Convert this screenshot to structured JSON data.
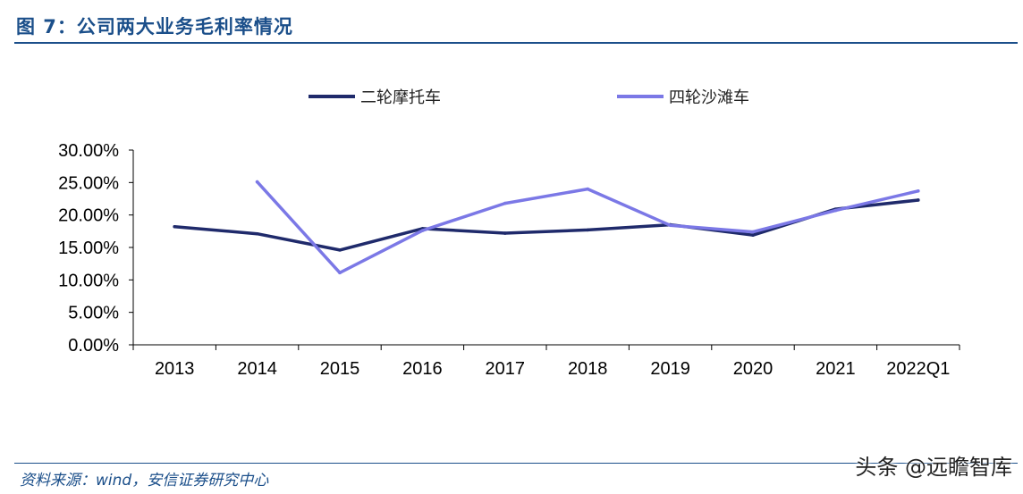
{
  "figure": {
    "title": "图 7：公司两大业务毛利率情况",
    "source": "资料来源：wind，安信证券研究中心",
    "watermark": "头条 @远瞻智库"
  },
  "chart_data": {
    "type": "line",
    "title": "",
    "xlabel": "",
    "ylabel": "",
    "categories": [
      "2013",
      "2014",
      "2015",
      "2016",
      "2017",
      "2018",
      "2019",
      "2020",
      "2021",
      "2022Q1"
    ],
    "ylim": [
      0,
      30
    ],
    "yticks": [
      "0.00%",
      "5.00%",
      "10.00%",
      "15.00%",
      "20.00%",
      "25.00%",
      "30.00%"
    ],
    "grid": false,
    "legend_position": "top",
    "series": [
      {
        "name": "二轮摩托车",
        "color": "#1f2a6b",
        "values": [
          18.2,
          17.1,
          14.6,
          17.9,
          17.2,
          17.7,
          18.5,
          16.9,
          20.9,
          22.3
        ]
      },
      {
        "name": "四轮沙滩车",
        "color": "#7b78e6",
        "values": [
          null,
          25.1,
          11.1,
          17.6,
          21.8,
          24.0,
          18.4,
          17.4,
          20.7,
          23.7
        ]
      }
    ]
  }
}
